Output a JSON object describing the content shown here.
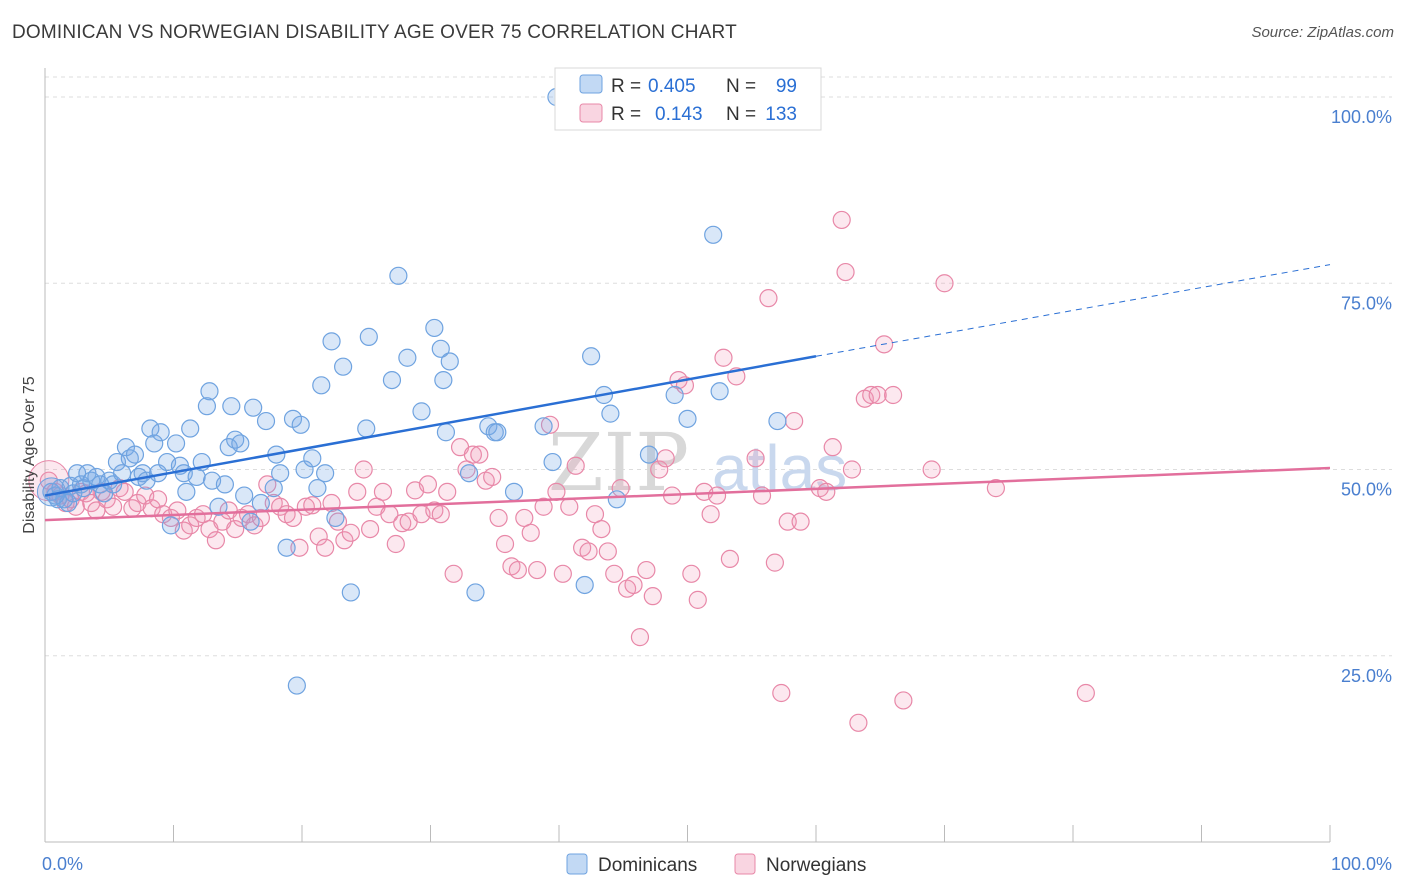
{
  "title": "DOMINICAN VS NORWEGIAN DISABILITY AGE OVER 75 CORRELATION CHART",
  "source": "Source: ZipAtlas.com",
  "watermark": {
    "zip": "ZIP",
    "atlas": "atlas"
  },
  "colors": {
    "blue": "#6fa3e0",
    "blue_fill": "rgba(120,170,230,0.28)",
    "blue_line": "#2a6fd4",
    "pink": "#e888a8",
    "pink_fill": "rgba(240,150,180,0.22)",
    "pink_line": "#e26f9c"
  },
  "legend_box": {
    "rows": [
      {
        "r_label": "R =",
        "r_value": "0.405",
        "n_label": "N =",
        "n_value": "99",
        "color": "blue"
      },
      {
        "r_label": "R =",
        "r_value": "0.143",
        "n_label": "N =",
        "n_value": "133",
        "color": "pink"
      }
    ]
  },
  "chart_data": {
    "type": "scatter",
    "title": "DOMINICAN VS NORWEGIAN DISABILITY AGE OVER 75 CORRELATION CHART",
    "xlabel": "",
    "ylabel": "Disability Age Over 75",
    "xlim": [
      0,
      100
    ],
    "ylim": [
      0,
      105
    ],
    "x_tick_labels": [
      "0.0%",
      "100.0%"
    ],
    "y_tick_labels": [
      "25.0%",
      "50.0%",
      "75.0%",
      "100.0%"
    ],
    "y_ticks": [
      25,
      50,
      75,
      100
    ],
    "grid": true,
    "legend": {
      "position": "bottom",
      "entries": [
        "Dominicans",
        "Norwegians"
      ]
    },
    "series": [
      {
        "name": "Dominicans",
        "color": "blue",
        "trend": {
          "x0": 0,
          "y0": 46.5,
          "x1": 60,
          "y1": 65.2,
          "dash_to_x": 100,
          "dash_to_y": 77.5
        },
        "points": [
          [
            0.5,
            47
          ],
          [
            0.8,
            46.5
          ],
          [
            1,
            46
          ],
          [
            1.2,
            47.5
          ],
          [
            1.5,
            46
          ],
          [
            1.8,
            45.5
          ],
          [
            2,
            47.8
          ],
          [
            2.2,
            46.8
          ],
          [
            2.5,
            49.5
          ],
          [
            2.8,
            48
          ],
          [
            3,
            47.5
          ],
          [
            3.3,
            49.5
          ],
          [
            3.6,
            48.5
          ],
          [
            4,
            49
          ],
          [
            4.3,
            48
          ],
          [
            4.6,
            46.8
          ],
          [
            5,
            48.5
          ],
          [
            5.3,
            48
          ],
          [
            5.6,
            51
          ],
          [
            6,
            49.5
          ],
          [
            6.3,
            53
          ],
          [
            6.6,
            51.5
          ],
          [
            7,
            52
          ],
          [
            7.3,
            49
          ],
          [
            7.6,
            49.5
          ],
          [
            7.9,
            48.5
          ],
          [
            8.2,
            55.5
          ],
          [
            8.5,
            53.5
          ],
          [
            8.8,
            49.5
          ],
          [
            9,
            55
          ],
          [
            9.5,
            51
          ],
          [
            9.8,
            42.5
          ],
          [
            10.2,
            53.5
          ],
          [
            10.5,
            50.5
          ],
          [
            10.8,
            49.5
          ],
          [
            11,
            47
          ],
          [
            11.3,
            55.5
          ],
          [
            11.8,
            49
          ],
          [
            12.2,
            51
          ],
          [
            12.6,
            58.5
          ],
          [
            12.8,
            60.5
          ],
          [
            13,
            48.5
          ],
          [
            13.5,
            45
          ],
          [
            14,
            48
          ],
          [
            14.3,
            53
          ],
          [
            14.5,
            58.5
          ],
          [
            14.8,
            54
          ],
          [
            15.2,
            53.5
          ],
          [
            15.5,
            46.5
          ],
          [
            16,
            43
          ],
          [
            16.2,
            58.3
          ],
          [
            16.8,
            45.5
          ],
          [
            17.2,
            56.5
          ],
          [
            17.8,
            47.5
          ],
          [
            18,
            52
          ],
          [
            18.3,
            49.5
          ],
          [
            18.8,
            39.5
          ],
          [
            19.3,
            56.8
          ],
          [
            19.6,
            21
          ],
          [
            19.9,
            56
          ],
          [
            20.2,
            50
          ],
          [
            20.8,
            51.5
          ],
          [
            21.2,
            47.5
          ],
          [
            21.5,
            61.3
          ],
          [
            21.8,
            49.5
          ],
          [
            22.3,
            67.2
          ],
          [
            22.6,
            43.5
          ],
          [
            23.2,
            63.8
          ],
          [
            23.8,
            33.5
          ],
          [
            25,
            55.5
          ],
          [
            25.2,
            67.8
          ],
          [
            27,
            62
          ],
          [
            27.5,
            76
          ],
          [
            28.2,
            65
          ],
          [
            29.3,
            57.8
          ],
          [
            30.3,
            69
          ],
          [
            30.8,
            66.2
          ],
          [
            31,
            62
          ],
          [
            31.2,
            55
          ],
          [
            31.5,
            64.5
          ],
          [
            33,
            49.5
          ],
          [
            33.5,
            33.5
          ],
          [
            34.5,
            55.8
          ],
          [
            35,
            55
          ],
          [
            35.2,
            55
          ],
          [
            36.5,
            47
          ],
          [
            38.8,
            55.8
          ],
          [
            39.5,
            51
          ],
          [
            39.8,
            100
          ],
          [
            41,
            100
          ],
          [
            42,
            34.5
          ],
          [
            42.5,
            65.2
          ],
          [
            43.5,
            60
          ],
          [
            44,
            57.5
          ],
          [
            44.5,
            46
          ],
          [
            47,
            52
          ],
          [
            49,
            60
          ],
          [
            50,
            56.8
          ],
          [
            52,
            81.5
          ],
          [
            52.5,
            60.5
          ],
          [
            57,
            56.5
          ]
        ]
      },
      {
        "name": "Norwegians",
        "color": "pink",
        "trend": {
          "x0": 0,
          "y0": 43.2,
          "x1": 100,
          "y1": 50.2
        },
        "points": [
          [
            0.3,
            48.5
          ],
          [
            0.8,
            47
          ],
          [
            1.2,
            46.5
          ],
          [
            1.6,
            45.5
          ],
          [
            2,
            46
          ],
          [
            2.4,
            45
          ],
          [
            2.8,
            47
          ],
          [
            3.2,
            46.8
          ],
          [
            3.6,
            45.5
          ],
          [
            4,
            44.5
          ],
          [
            4.4,
            47
          ],
          [
            4.8,
            46
          ],
          [
            5.3,
            45
          ],
          [
            5.8,
            47.5
          ],
          [
            6.2,
            47
          ],
          [
            6.8,
            44.8
          ],
          [
            7.2,
            45.5
          ],
          [
            7.8,
            46.5
          ],
          [
            8.3,
            44.8
          ],
          [
            8.8,
            46
          ],
          [
            9.2,
            44
          ],
          [
            9.8,
            43.5
          ],
          [
            10.3,
            44.5
          ],
          [
            10.8,
            41.8
          ],
          [
            11.3,
            42.5
          ],
          [
            11.8,
            43.5
          ],
          [
            12.3,
            44
          ],
          [
            12.8,
            42
          ],
          [
            13.3,
            40.5
          ],
          [
            13.8,
            43
          ],
          [
            14.3,
            44.5
          ],
          [
            14.8,
            42
          ],
          [
            15.3,
            43.5
          ],
          [
            15.8,
            44
          ],
          [
            16.3,
            42.5
          ],
          [
            16.8,
            43.5
          ],
          [
            17.3,
            48
          ],
          [
            17.8,
            45.5
          ],
          [
            18.3,
            45
          ],
          [
            18.8,
            44
          ],
          [
            19.3,
            43.5
          ],
          [
            19.8,
            39.5
          ],
          [
            20.3,
            45
          ],
          [
            20.8,
            45.2
          ],
          [
            21.3,
            41
          ],
          [
            21.8,
            39.5
          ],
          [
            22.3,
            45.5
          ],
          [
            22.8,
            43
          ],
          [
            23.3,
            40.5
          ],
          [
            23.8,
            41.5
          ],
          [
            24.3,
            47
          ],
          [
            24.8,
            50
          ],
          [
            25.3,
            42
          ],
          [
            25.8,
            45
          ],
          [
            26.3,
            47
          ],
          [
            26.8,
            44
          ],
          [
            27.3,
            40
          ],
          [
            27.8,
            42.8
          ],
          [
            28.3,
            43
          ],
          [
            28.8,
            47.2
          ],
          [
            29.3,
            44
          ],
          [
            29.8,
            48
          ],
          [
            30.3,
            44.5
          ],
          [
            30.8,
            44
          ],
          [
            31.3,
            47
          ],
          [
            31.8,
            36
          ],
          [
            32.3,
            53
          ],
          [
            32.8,
            50
          ],
          [
            33.3,
            52
          ],
          [
            33.8,
            52
          ],
          [
            34.3,
            48.5
          ],
          [
            34.8,
            49
          ],
          [
            35.3,
            43.5
          ],
          [
            35.8,
            40
          ],
          [
            36.3,
            37
          ],
          [
            36.8,
            36.5
          ],
          [
            37.3,
            43.5
          ],
          [
            37.8,
            41.5
          ],
          [
            38.3,
            36.5
          ],
          [
            38.8,
            45
          ],
          [
            39.3,
            56
          ],
          [
            39.8,
            47
          ],
          [
            40.3,
            36
          ],
          [
            40.8,
            45
          ],
          [
            41.3,
            50.5
          ],
          [
            41.8,
            39.5
          ],
          [
            42.3,
            39
          ],
          [
            42.8,
            44
          ],
          [
            43.3,
            42
          ],
          [
            43.8,
            39
          ],
          [
            44.3,
            36
          ],
          [
            44.8,
            47.5
          ],
          [
            45.3,
            34
          ],
          [
            45.8,
            34.5
          ],
          [
            46.3,
            27.5
          ],
          [
            46.8,
            36.5
          ],
          [
            47.3,
            33
          ],
          [
            47.8,
            50
          ],
          [
            48.3,
            51.5
          ],
          [
            48.8,
            46.5
          ],
          [
            49.3,
            62
          ],
          [
            49.8,
            61.3
          ],
          [
            50.3,
            36
          ],
          [
            50.8,
            32.5
          ],
          [
            51.3,
            47
          ],
          [
            51.8,
            44
          ],
          [
            52.3,
            46.5
          ],
          [
            52.8,
            65
          ],
          [
            53.3,
            38
          ],
          [
            53.8,
            62.5
          ],
          [
            55.3,
            51.5
          ],
          [
            55.8,
            46.5
          ],
          [
            56.3,
            73
          ],
          [
            56.8,
            37.5
          ],
          [
            57.3,
            20
          ],
          [
            57.8,
            43
          ],
          [
            58.3,
            56.5
          ],
          [
            58.8,
            43
          ],
          [
            60.3,
            47.5
          ],
          [
            60.8,
            47
          ],
          [
            61.3,
            53
          ],
          [
            62,
            83.5
          ],
          [
            62.3,
            76.5
          ],
          [
            62.8,
            50
          ],
          [
            63.3,
            16
          ],
          [
            63.8,
            59.5
          ],
          [
            64.3,
            60
          ],
          [
            64.8,
            60
          ],
          [
            65.3,
            66.8
          ],
          [
            66,
            60
          ],
          [
            66.8,
            19
          ],
          [
            69,
            50
          ],
          [
            70,
            75
          ],
          [
            74,
            47.5
          ],
          [
            81,
            20
          ]
        ]
      }
    ]
  }
}
